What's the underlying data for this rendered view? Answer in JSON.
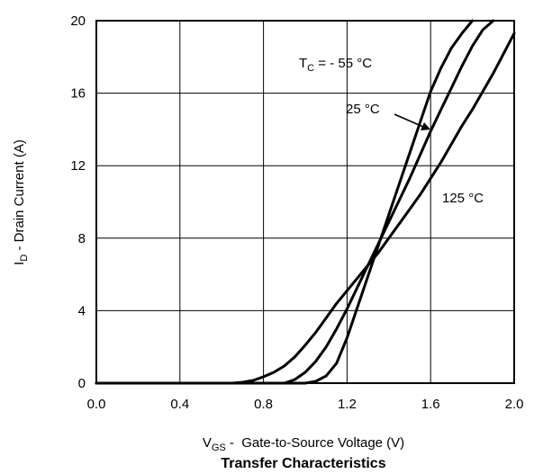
{
  "chart_data": {
    "type": "line",
    "title": "Transfer Characteristics",
    "xlabel": {
      "main": "V",
      "sub": "GS",
      "rest": " -  Gate-to-Source Voltage (V)"
    },
    "ylabel": {
      "main": "I",
      "sub": "D",
      "rest": " - Drain Current (A)"
    },
    "xlim": [
      0.0,
      2.0
    ],
    "ylim": [
      0,
      20
    ],
    "xticks": [
      "0.0",
      "0.4",
      "0.8",
      "1.2",
      "1.6",
      "2.0"
    ],
    "xtick_values": [
      0.0,
      0.4,
      0.8,
      1.2,
      1.6,
      2.0
    ],
    "yticks": [
      "0",
      "4",
      "8",
      "12",
      "16",
      "20"
    ],
    "ytick_values": [
      0,
      4,
      8,
      12,
      16,
      20
    ],
    "grid": true,
    "series": [
      {
        "name": "T_C = - 55 °C",
        "x": [
          0.0,
          1.0,
          1.05,
          1.1,
          1.15,
          1.2,
          1.25,
          1.3,
          1.35,
          1.4,
          1.45,
          1.5,
          1.55,
          1.6,
          1.65,
          1.7,
          1.75,
          1.8
        ],
        "y": [
          0,
          0,
          0.1,
          0.4,
          1.1,
          2.5,
          4.2,
          5.9,
          7.6,
          9.3,
          11.0,
          12.7,
          14.4,
          16.1,
          17.4,
          18.5,
          19.3,
          20.0
        ]
      },
      {
        "name": "25 °C",
        "x": [
          0.0,
          0.9,
          0.95,
          1.0,
          1.05,
          1.1,
          1.15,
          1.2,
          1.25,
          1.3,
          1.35,
          1.4,
          1.45,
          1.5,
          1.55,
          1.6,
          1.65,
          1.7,
          1.75,
          1.8,
          1.85,
          1.9
        ],
        "y": [
          0,
          0,
          0.2,
          0.6,
          1.2,
          2.0,
          3.0,
          4.1,
          5.3,
          6.5,
          7.7,
          8.9,
          10.1,
          11.3,
          12.6,
          13.9,
          15.1,
          16.3,
          17.5,
          18.6,
          19.5,
          20.0
        ]
      },
      {
        "name": "125 °C",
        "x": [
          0.0,
          0.65,
          0.7,
          0.75,
          0.8,
          0.85,
          0.9,
          0.95,
          1.0,
          1.05,
          1.1,
          1.15,
          1.2,
          1.25,
          1.3,
          1.35,
          1.4,
          1.45,
          1.5,
          1.55,
          1.6,
          1.65,
          1.7,
          1.75,
          1.8,
          1.85,
          1.9,
          1.95,
          2.0
        ],
        "y": [
          0,
          0,
          0.05,
          0.15,
          0.35,
          0.6,
          0.95,
          1.45,
          2.1,
          2.8,
          3.6,
          4.4,
          5.1,
          5.8,
          6.5,
          7.2,
          8.0,
          8.8,
          9.6,
          10.4,
          11.3,
          12.2,
          13.2,
          14.2,
          15.1,
          16.1,
          17.1,
          18.2,
          19.3
        ]
      }
    ],
    "annotations": [
      {
        "text": "T",
        "sub": "C",
        "rest": " = - 55 °C",
        "series": 0
      },
      {
        "text": "25 °C",
        "series": 1,
        "arrow_to": [
          1.615,
          14.2
        ]
      },
      {
        "text": "125 °C",
        "series": 2
      }
    ]
  }
}
